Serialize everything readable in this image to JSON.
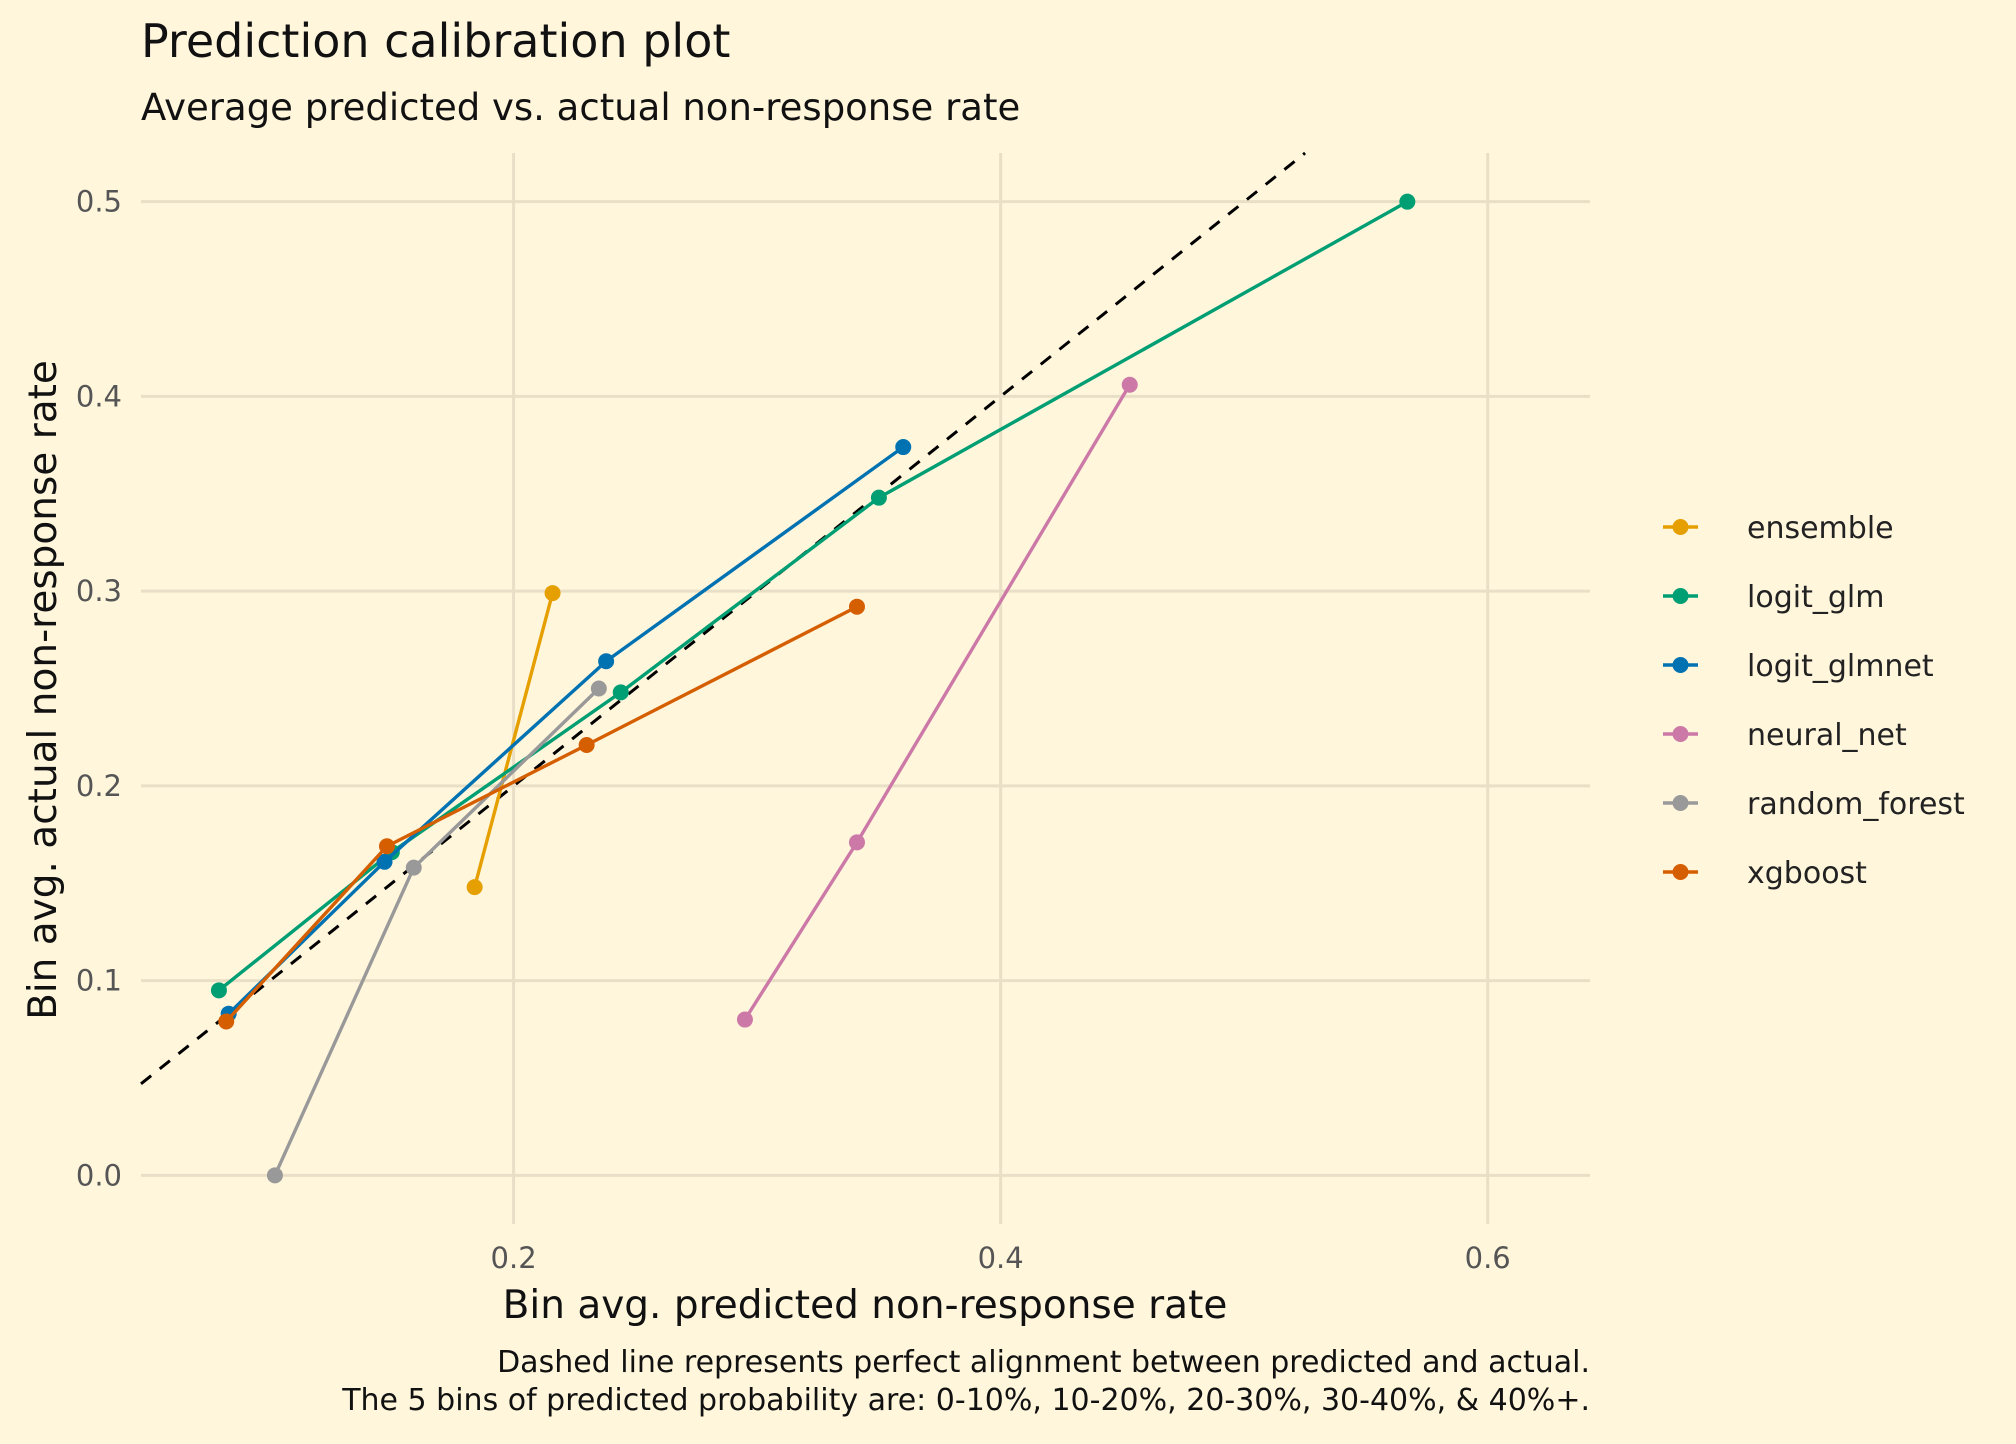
{
  "chart_data": {
    "type": "line",
    "title": "Prediction calibration plot",
    "subtitle": "Average predicted vs. actual non-response rate",
    "xlabel": "Bin avg. predicted non-response rate",
    "ylabel": "Bin avg. actual non-response rate",
    "caption_lines": [
      "Dashed line represents perfect alignment between predicted and actual.",
      "The 5 bins of predicted probability are: 0-10%, 10-20%, 20-30%, 30-40%, & 40%+."
    ],
    "xlim": [
      0.047,
      0.642
    ],
    "ylim": [
      -0.025,
      0.525
    ],
    "x_ticks": [
      0.2,
      0.4,
      0.6
    ],
    "x_tick_labels": [
      "0.2",
      "0.4",
      "0.6"
    ],
    "y_ticks": [
      0.0,
      0.1,
      0.2,
      0.3,
      0.4,
      0.5
    ],
    "y_tick_labels": [
      "0.0",
      "0.1",
      "0.2",
      "0.3",
      "0.4",
      "0.5"
    ],
    "grid": true,
    "legend_position": "right",
    "reference_line": {
      "style": "dashed",
      "color": "#000000",
      "from": [
        0.047,
        0.047
      ],
      "to": [
        0.525,
        0.525
      ]
    },
    "series": [
      {
        "name": "ensemble",
        "color": "#E69F00",
        "points": [
          [
            0.184,
            0.148
          ],
          [
            0.216,
            0.299
          ]
        ]
      },
      {
        "name": "logit_glm",
        "color": "#009E73",
        "points": [
          [
            0.079,
            0.095
          ],
          [
            0.15,
            0.166
          ],
          [
            0.244,
            0.248
          ],
          [
            0.35,
            0.348
          ],
          [
            0.567,
            0.5
          ]
        ]
      },
      {
        "name": "logit_glmnet",
        "color": "#0072B2",
        "points": [
          [
            0.083,
            0.083
          ],
          [
            0.147,
            0.161
          ],
          [
            0.238,
            0.264
          ],
          [
            0.36,
            0.374
          ]
        ]
      },
      {
        "name": "neural_net",
        "color": "#CC79A7",
        "points": [
          [
            0.295,
            0.08
          ],
          [
            0.341,
            0.171
          ],
          [
            0.453,
            0.406
          ]
        ]
      },
      {
        "name": "random_forest",
        "color": "#999999",
        "points": [
          [
            0.102,
            0.0
          ],
          [
            0.159,
            0.158
          ],
          [
            0.235,
            0.25
          ]
        ]
      },
      {
        "name": "xgboost",
        "color": "#D55E00",
        "points": [
          [
            0.082,
            0.079
          ],
          [
            0.148,
            0.169
          ],
          [
            0.23,
            0.221
          ],
          [
            0.341,
            0.292
          ]
        ]
      }
    ]
  }
}
